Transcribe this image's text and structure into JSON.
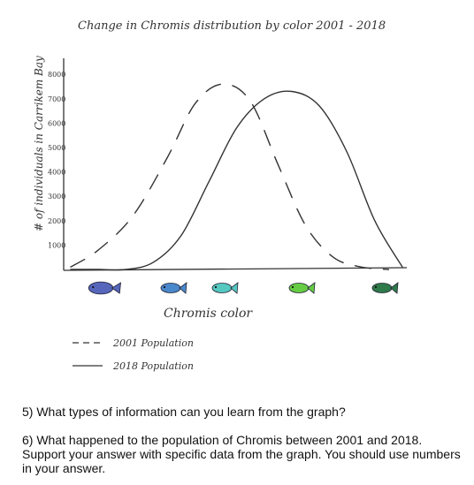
{
  "chart_data": {
    "type": "line",
    "title": "Change in Chromis distribution by color  2001 - 2018",
    "xlabel": "Chromis color",
    "ylabel": "# of individuals in Carrikem Bay",
    "y_ticks": [
      "8000",
      "7000",
      "6000",
      "5000",
      "4000",
      "3000",
      "2000",
      "1000"
    ],
    "ylim": [
      0,
      8500
    ],
    "categories": [
      "dark blue",
      "blue",
      "teal",
      "green",
      "dark green"
    ],
    "series": [
      {
        "name": "2001 Population",
        "style": "dashed",
        "color": "#333333",
        "x": [
          0.0,
          0.4,
          0.9,
          1.4,
          1.8,
          2.2,
          2.6,
          3.0,
          3.4,
          3.8,
          4.2,
          4.6
        ],
        "y": [
          100,
          800,
          2200,
          4600,
          6800,
          7600,
          6900,
          4300,
          1800,
          500,
          100,
          0
        ]
      },
      {
        "name": "2018 Population",
        "style": "solid",
        "color": "#333333",
        "x": [
          0.0,
          0.4,
          0.8,
          1.2,
          1.6,
          2.0,
          2.4,
          2.8,
          3.2,
          3.6,
          4.0,
          4.4,
          4.8
        ],
        "y": [
          0,
          0,
          0,
          300,
          1400,
          3600,
          5800,
          7000,
          7300,
          6700,
          4800,
          2000,
          100
        ]
      }
    ],
    "fish_colors": [
      "#5566bb",
      "#4a88cc",
      "#55c8c0",
      "#66cc44",
      "#2e7a4a"
    ],
    "legend": [
      {
        "marker": "- - -",
        "label": "2001 Population"
      },
      {
        "marker": "——",
        "label": "2018 Population"
      }
    ]
  },
  "questions": {
    "q5": "5)  What types of information can you learn from the graph?",
    "q6": "6) What happened to the population of Chromis between 2001 and 2018. Support your answer with specific data from the graph. You should use numbers in your answer."
  }
}
